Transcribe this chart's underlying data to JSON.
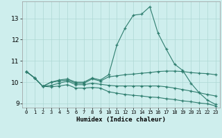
{
  "xlabel": "Humidex (Indice chaleur)",
  "background_color": "#ceeeed",
  "grid_color": "#aed8d4",
  "line_color": "#2e7d6e",
  "xlim": [
    -0.5,
    23.5
  ],
  "ylim": [
    8.8,
    13.8
  ],
  "xticks": [
    0,
    1,
    2,
    3,
    4,
    5,
    6,
    7,
    8,
    9,
    10,
    11,
    12,
    13,
    14,
    15,
    16,
    17,
    18,
    19,
    20,
    21,
    22,
    23
  ],
  "yticks": [
    9,
    10,
    11,
    12,
    13
  ],
  "series": [
    [
      10.5,
      10.2,
      9.8,
      10.0,
      10.1,
      10.15,
      10.0,
      10.0,
      10.2,
      10.1,
      10.35,
      11.75,
      12.55,
      13.15,
      13.2,
      13.55,
      12.3,
      11.55,
      10.85,
      10.55,
      9.95,
      9.5,
      9.15,
      8.95
    ],
    [
      10.5,
      10.2,
      9.8,
      10.0,
      10.05,
      10.1,
      9.95,
      9.95,
      10.15,
      10.05,
      10.25,
      10.3,
      10.35,
      10.38,
      10.42,
      10.45,
      10.5,
      10.52,
      10.52,
      10.5,
      10.45,
      10.42,
      10.4,
      10.35
    ],
    [
      10.5,
      10.2,
      9.8,
      9.85,
      9.95,
      10.05,
      9.88,
      9.88,
      9.95,
      9.9,
      9.85,
      9.82,
      9.82,
      9.82,
      9.82,
      9.82,
      9.82,
      9.78,
      9.72,
      9.65,
      9.58,
      9.5,
      9.42,
      9.35
    ],
    [
      10.5,
      10.2,
      9.8,
      9.78,
      9.82,
      9.88,
      9.72,
      9.72,
      9.75,
      9.72,
      9.55,
      9.48,
      9.42,
      9.38,
      9.35,
      9.3,
      9.28,
      9.22,
      9.18,
      9.12,
      9.08,
      9.02,
      8.98,
      8.88
    ]
  ]
}
